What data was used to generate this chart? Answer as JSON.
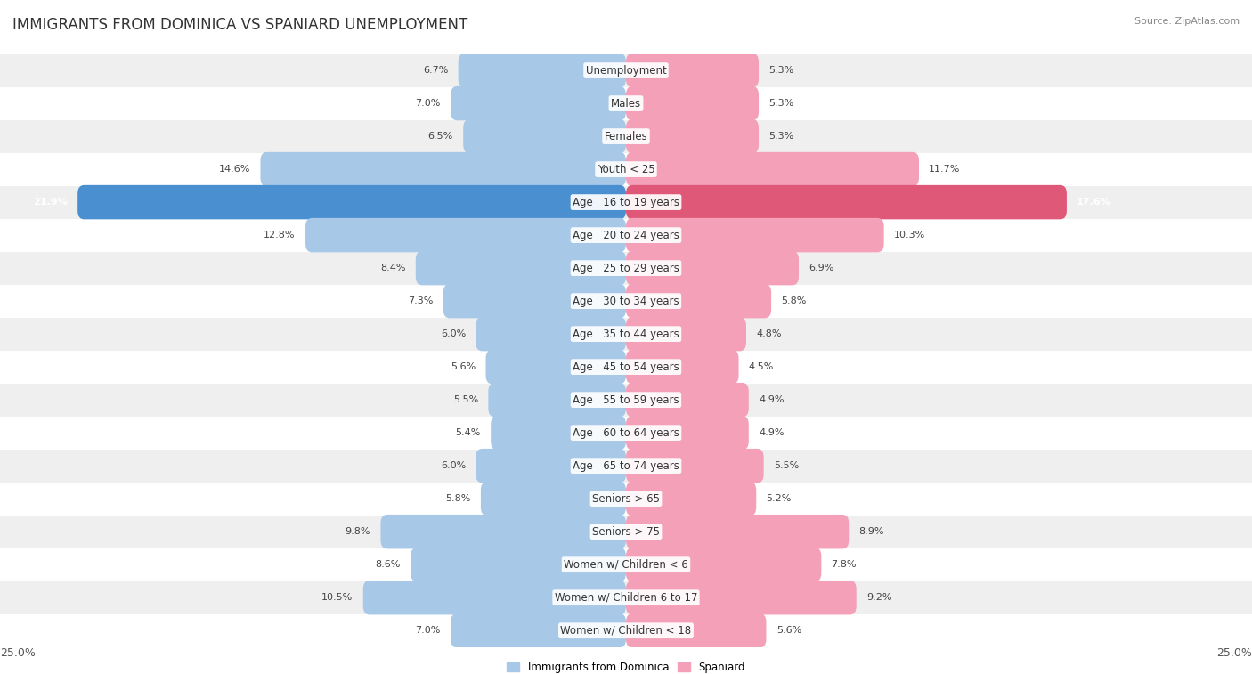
{
  "title": "IMMIGRANTS FROM DOMINICA VS SPANIARD UNEMPLOYMENT",
  "source": "Source: ZipAtlas.com",
  "categories": [
    "Unemployment",
    "Males",
    "Females",
    "Youth < 25",
    "Age | 16 to 19 years",
    "Age | 20 to 24 years",
    "Age | 25 to 29 years",
    "Age | 30 to 34 years",
    "Age | 35 to 44 years",
    "Age | 45 to 54 years",
    "Age | 55 to 59 years",
    "Age | 60 to 64 years",
    "Age | 65 to 74 years",
    "Seniors > 65",
    "Seniors > 75",
    "Women w/ Children < 6",
    "Women w/ Children 6 to 17",
    "Women w/ Children < 18"
  ],
  "left_values": [
    6.7,
    7.0,
    6.5,
    14.6,
    21.9,
    12.8,
    8.4,
    7.3,
    6.0,
    5.6,
    5.5,
    5.4,
    6.0,
    5.8,
    9.8,
    8.6,
    10.5,
    7.0
  ],
  "right_values": [
    5.3,
    5.3,
    5.3,
    11.7,
    17.6,
    10.3,
    6.9,
    5.8,
    4.8,
    4.5,
    4.9,
    4.9,
    5.5,
    5.2,
    8.9,
    7.8,
    9.2,
    5.6
  ],
  "left_color": "#a8c8e8",
  "right_color": "#f4a0b8",
  "highlight_left_color": "#4a90d0",
  "highlight_right_color": "#e05878",
  "highlight_row": 4,
  "background_row_light": "#efefef",
  "background_row_white": "#ffffff",
  "bar_height": 0.52,
  "xlim": 25.0,
  "legend_left": "Immigrants from Dominica",
  "legend_right": "Spaniard",
  "title_fontsize": 12,
  "label_fontsize": 8.5,
  "value_fontsize": 8,
  "axis_label_fontsize": 9
}
